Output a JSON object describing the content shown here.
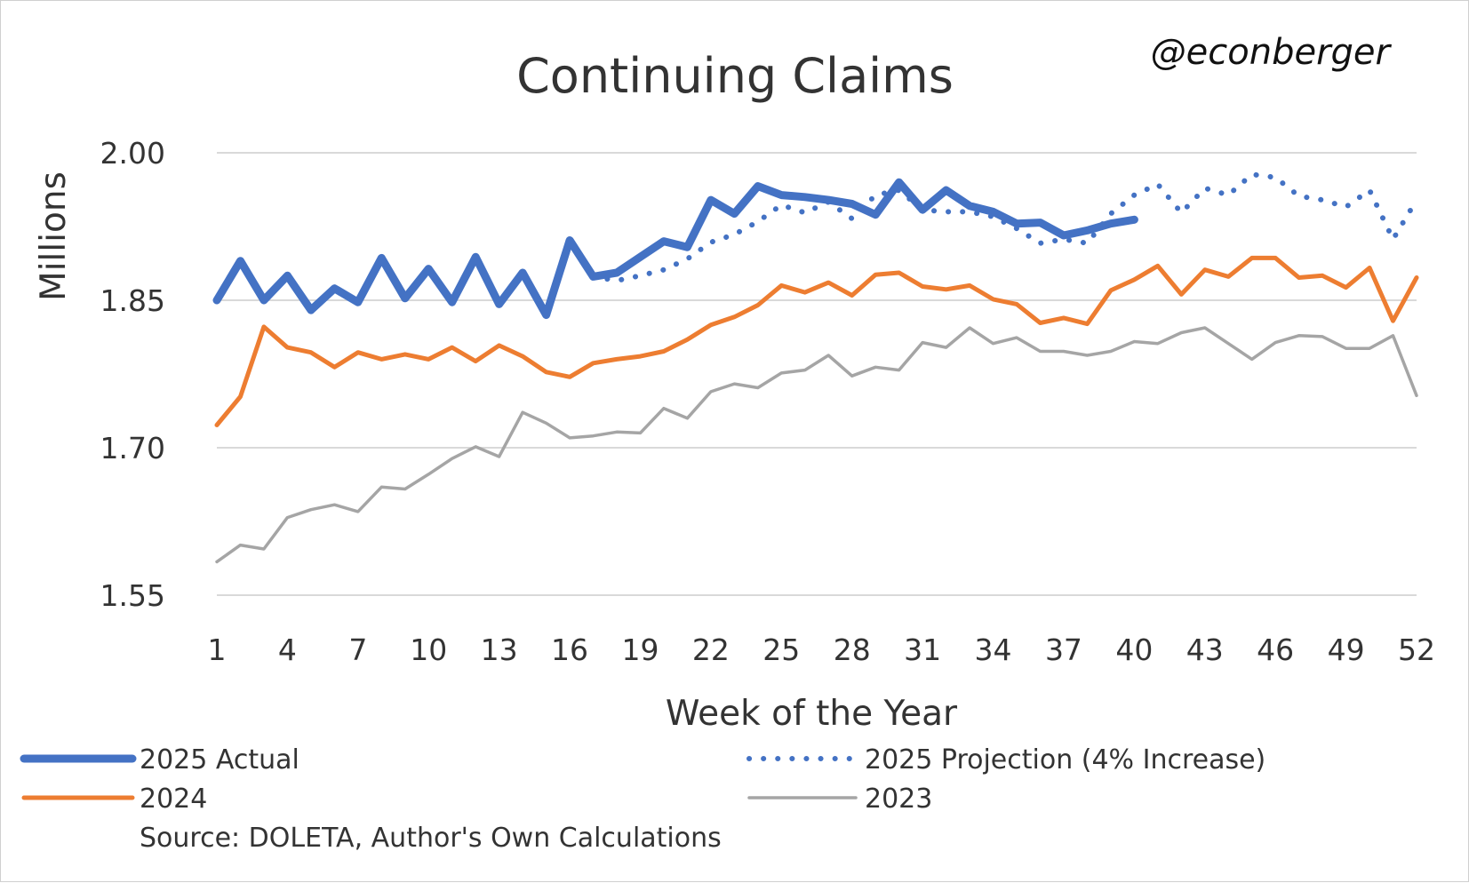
{
  "chart_data": {
    "type": "line",
    "title": "Continuing Claims",
    "watermark": "@econberger",
    "xlabel": "Week of the Year",
    "ylabel": "Millions",
    "ylim": [
      1.55,
      2.0
    ],
    "yticks": [
      1.55,
      1.7,
      1.85,
      2.0
    ],
    "ytick_labels": [
      "1.55",
      "1.70",
      "1.85",
      "2.00"
    ],
    "xlim": [
      1,
      52
    ],
    "xticks": [
      1,
      4,
      7,
      10,
      13,
      16,
      19,
      22,
      25,
      28,
      31,
      34,
      37,
      40,
      43,
      46,
      49,
      52
    ],
    "xtick_labels": [
      "1",
      "4",
      "7",
      "10",
      "13",
      "16",
      "19",
      "22",
      "25",
      "28",
      "31",
      "34",
      "37",
      "40",
      "43",
      "46",
      "49",
      "52"
    ],
    "grid": true,
    "legend_position": "bottom",
    "source": "Source: DOLETA, Author's Own Calculations",
    "series": [
      {
        "name": "2025 Actual",
        "color": "#4472C4",
        "style": "solid-thick",
        "x": [
          1,
          2,
          3,
          4,
          5,
          6,
          7,
          8,
          9,
          10,
          11,
          12,
          13,
          14,
          15,
          16,
          17,
          18,
          19,
          20,
          21,
          22,
          23,
          24,
          25,
          26,
          27,
          28,
          29,
          30,
          31,
          32,
          33,
          34,
          35,
          36,
          37,
          38,
          39,
          40
        ],
        "values": [
          1.85,
          1.89,
          1.85,
          1.875,
          1.84,
          1.862,
          1.848,
          1.893,
          1.852,
          1.882,
          1.848,
          1.894,
          1.846,
          1.878,
          1.835,
          1.911,
          1.874,
          1.878,
          1.894,
          1.91,
          1.904,
          1.952,
          1.938,
          1.966,
          1.957,
          1.955,
          1.952,
          1.948,
          1.937,
          1.97,
          1.942,
          1.962,
          1.946,
          1.94,
          1.928,
          1.929,
          1.916,
          1.921,
          1.928,
          1.932
        ]
      },
      {
        "name": "2025 Projection (4% Increase)",
        "color": "#4472C4",
        "style": "dotted",
        "x": [
          17,
          18,
          19,
          20,
          21,
          22,
          23,
          24,
          25,
          26,
          27,
          28,
          29,
          30,
          31,
          32,
          33,
          34,
          35,
          36,
          37,
          38,
          39,
          40,
          41,
          42,
          43,
          44,
          45,
          46,
          47,
          48,
          49,
          50,
          51,
          52
        ],
        "values": [
          1.874,
          1.87,
          1.875,
          1.881,
          1.892,
          1.909,
          1.917,
          1.93,
          1.947,
          1.939,
          1.95,
          1.933,
          1.957,
          1.962,
          1.942,
          1.94,
          1.94,
          1.935,
          1.923,
          1.908,
          1.912,
          1.908,
          1.938,
          1.957,
          1.968,
          1.939,
          1.964,
          1.957,
          1.978,
          1.975,
          1.956,
          1.952,
          1.945,
          1.962,
          1.912,
          1.952
        ]
      },
      {
        "name": "2024",
        "color": "#ED7D31",
        "style": "solid",
        "x": [
          1,
          2,
          3,
          4,
          5,
          6,
          7,
          8,
          9,
          10,
          11,
          12,
          13,
          14,
          15,
          16,
          17,
          18,
          19,
          20,
          21,
          22,
          23,
          24,
          25,
          26,
          27,
          28,
          29,
          30,
          31,
          32,
          33,
          34,
          35,
          36,
          37,
          38,
          39,
          40,
          41,
          42,
          43,
          44,
          45,
          46,
          47,
          48,
          49,
          50,
          51,
          52
        ],
        "values": [
          1.723,
          1.752,
          1.823,
          1.802,
          1.797,
          1.782,
          1.797,
          1.79,
          1.795,
          1.79,
          1.802,
          1.788,
          1.804,
          1.793,
          1.777,
          1.772,
          1.786,
          1.79,
          1.793,
          1.798,
          1.81,
          1.825,
          1.833,
          1.845,
          1.865,
          1.858,
          1.868,
          1.855,
          1.876,
          1.878,
          1.864,
          1.861,
          1.865,
          1.851,
          1.846,
          1.827,
          1.832,
          1.826,
          1.86,
          1.871,
          1.885,
          1.856,
          1.881,
          1.874,
          1.893,
          1.893,
          1.873,
          1.875,
          1.863,
          1.883,
          1.829,
          1.873
        ]
      },
      {
        "name": "2023",
        "color": "#A5A5A5",
        "style": "solid-thin",
        "x": [
          1,
          2,
          3,
          4,
          5,
          6,
          7,
          8,
          9,
          10,
          11,
          12,
          13,
          14,
          15,
          16,
          17,
          18,
          19,
          20,
          21,
          22,
          23,
          24,
          25,
          26,
          27,
          28,
          29,
          30,
          31,
          32,
          33,
          34,
          35,
          36,
          37,
          38,
          39,
          40,
          41,
          42,
          43,
          44,
          45,
          46,
          47,
          48,
          49,
          50,
          51,
          52
        ],
        "values": [
          1.584,
          1.601,
          1.597,
          1.629,
          1.637,
          1.642,
          1.635,
          1.66,
          1.658,
          1.673,
          1.689,
          1.701,
          1.691,
          1.736,
          1.725,
          1.71,
          1.712,
          1.716,
          1.715,
          1.74,
          1.73,
          1.757,
          1.765,
          1.761,
          1.776,
          1.779,
          1.794,
          1.773,
          1.782,
          1.779,
          1.807,
          1.802,
          1.822,
          1.806,
          1.812,
          1.798,
          1.798,
          1.794,
          1.798,
          1.808,
          1.806,
          1.817,
          1.822,
          1.806,
          1.79,
          1.807,
          1.814,
          1.813,
          1.801,
          1.801,
          1.814,
          1.753
        ]
      }
    ]
  }
}
